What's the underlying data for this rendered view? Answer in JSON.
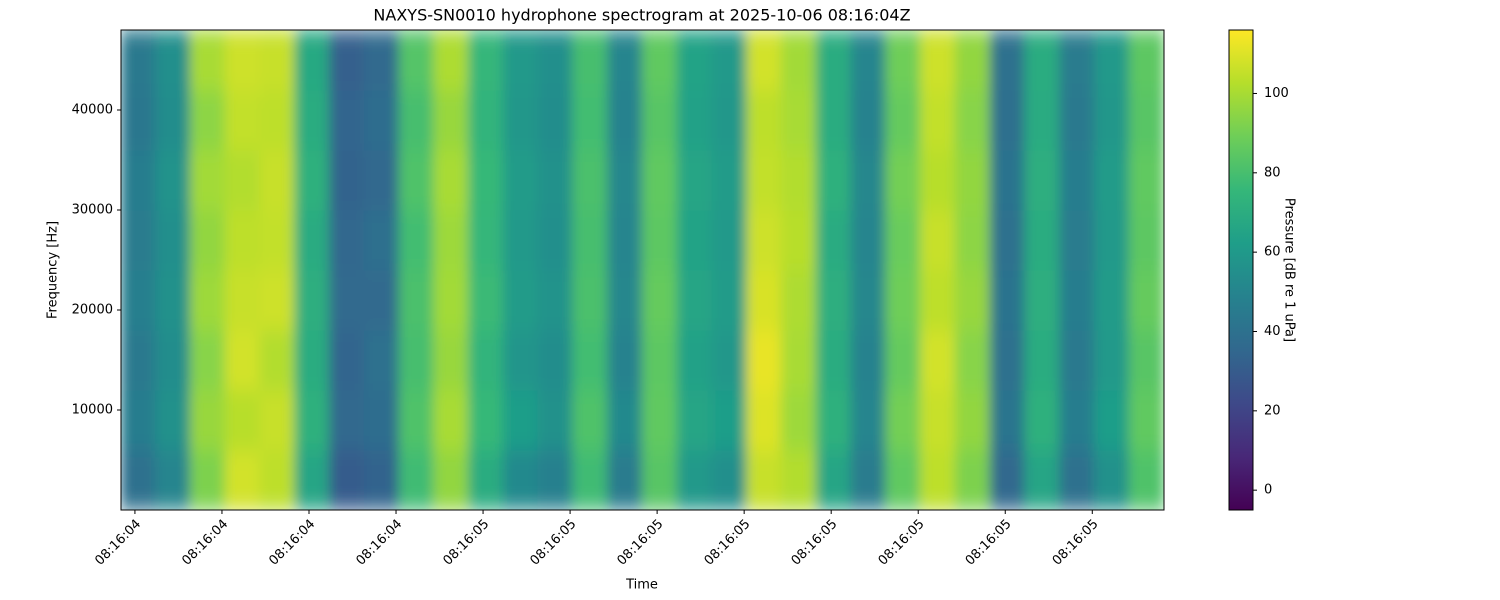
{
  "chart_data": {
    "type": "heatmap",
    "title": "NAXYS-SN0010 hydrophone spectrogram at 2025-10-06 08:16:04Z",
    "x_label": "Time",
    "y_label": "Frequency [Hz]",
    "colorbar_label": "Pressure [dB re 1 uPa]",
    "colormap": "viridis",
    "xlim": [
      4.48,
      5.978
    ],
    "xticks": [
      {
        "value": 4.5,
        "label": "08:16:04"
      },
      {
        "value": 4.625,
        "label": "08:16:04"
      },
      {
        "value": 4.75,
        "label": "08:16:04"
      },
      {
        "value": 4.875,
        "label": "08:16:04"
      },
      {
        "value": 5.0,
        "label": "08:16:05"
      },
      {
        "value": 5.125,
        "label": "08:16:05"
      },
      {
        "value": 5.25,
        "label": "08:16:05"
      },
      {
        "value": 5.375,
        "label": "08:16:05"
      },
      {
        "value": 5.5,
        "label": "08:16:05"
      },
      {
        "value": 5.625,
        "label": "08:16:05"
      },
      {
        "value": 5.75,
        "label": "08:16:05"
      },
      {
        "value": 5.875,
        "label": "08:16:05"
      }
    ],
    "ylim": [
      0,
      48000
    ],
    "yticks": [
      10000,
      20000,
      30000,
      40000
    ],
    "clim": [
      -5,
      116
    ],
    "cticks": [
      0,
      20,
      40,
      60,
      80,
      100
    ],
    "z": [
      [
        40,
        50,
        92,
        108,
        104,
        66,
        30,
        33,
        78,
        96,
        70,
        52,
        48,
        78,
        45,
        84,
        60,
        55,
        106,
        102,
        66,
        45,
        86,
        104,
        92,
        36,
        66,
        40,
        56,
        82
      ],
      [
        46,
        56,
        97,
        103,
        106,
        72,
        36,
        38,
        82,
        100,
        76,
        62,
        56,
        82,
        52,
        86,
        66,
        62,
        110,
        98,
        72,
        50,
        90,
        106,
        96,
        42,
        72,
        46,
        62,
        86
      ],
      [
        44,
        54,
        94,
        108,
        102,
        70,
        34,
        40,
        80,
        97,
        74,
        58,
        54,
        79,
        49,
        85,
        64,
        59,
        112,
        100,
        70,
        49,
        87,
        108,
        94,
        40,
        70,
        44,
        60,
        84
      ],
      [
        47,
        56,
        98,
        106,
        107,
        71,
        37,
        37,
        81,
        99,
        77,
        61,
        57,
        81,
        51,
        87,
        66,
        61,
        109,
        101,
        71,
        51,
        89,
        104,
        97,
        41,
        71,
        46,
        61,
        87
      ],
      [
        45,
        55,
        96,
        104,
        105,
        69,
        35,
        39,
        79,
        98,
        75,
        60,
        55,
        80,
        50,
        85,
        65,
        60,
        107,
        103,
        69,
        50,
        88,
        106,
        95,
        40,
        70,
        45,
        60,
        85
      ],
      [
        46,
        57,
        99,
        102,
        106,
        72,
        33,
        36,
        82,
        100,
        76,
        61,
        56,
        81,
        51,
        86,
        66,
        61,
        105,
        102,
        72,
        51,
        90,
        103,
        96,
        41,
        71,
        46,
        61,
        86
      ],
      [
        43,
        54,
        95,
        105,
        104,
        70,
        34,
        38,
        80,
        97,
        74,
        59,
        54,
        79,
        49,
        84,
        64,
        59,
        104,
        100,
        70,
        49,
        87,
        105,
        94,
        39,
        69,
        44,
        59,
        84
      ],
      [
        44,
        55,
        100,
        107,
        106,
        68,
        32,
        37,
        83,
        101,
        75,
        60,
        55,
        80,
        50,
        86,
        65,
        60,
        108,
        99,
        70,
        50,
        89,
        107,
        96,
        40,
        70,
        45,
        60,
        85
      ]
    ]
  }
}
